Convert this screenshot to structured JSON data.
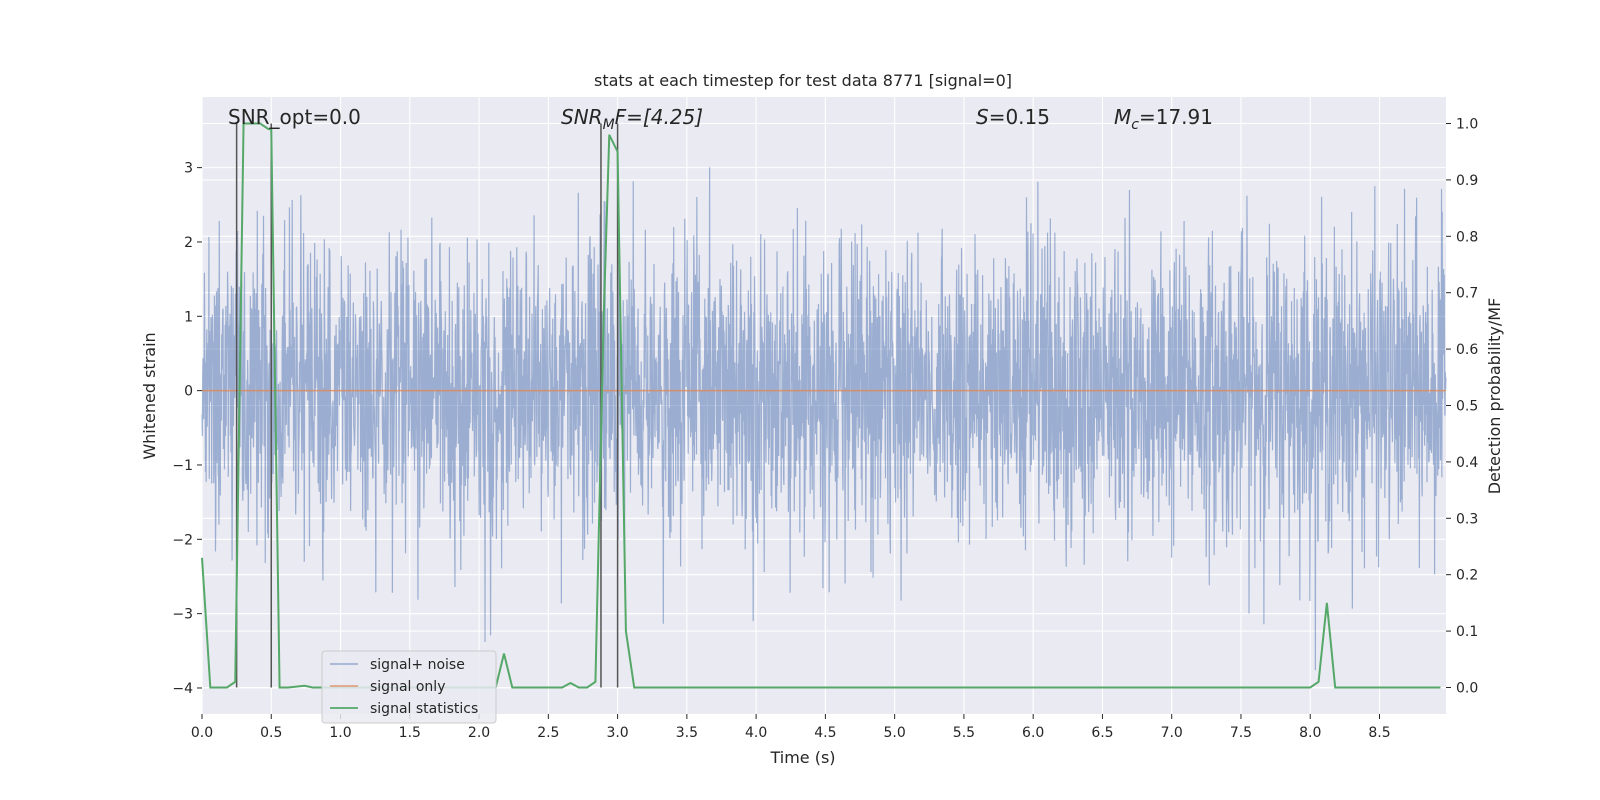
{
  "chart_data": {
    "type": "line",
    "title": "stats at each timestep for test data 8771 [signal=0]",
    "xlabel": "Time (s)",
    "ylabel_left": "Whitened strain",
    "ylabel_right": "Detection probability/MF",
    "xlim": [
      0.0,
      8.98
    ],
    "ylim_left": [
      -4.35,
      3.95
    ],
    "ylim_right": [
      -0.047,
      1.047
    ],
    "xticks": [
      "0.0",
      "0.5",
      "1.0",
      "1.5",
      "2.0",
      "2.5",
      "3.0",
      "3.5",
      "4.0",
      "4.5",
      "5.0",
      "5.5",
      "6.0",
      "6.5",
      "7.0",
      "7.5",
      "8.0",
      "8.5"
    ],
    "yticks_left": [
      "−4",
      "−3",
      "−2",
      "−1",
      "0",
      "1",
      "2",
      "3"
    ],
    "yticks_right": [
      "0.0",
      "0.1",
      "0.2",
      "0.3",
      "0.4",
      "0.5",
      "0.6",
      "0.7",
      "0.8",
      "0.9",
      "1.0"
    ],
    "grid": true,
    "legend_position": "lower-left",
    "colors": {
      "background": "#eaeaf2",
      "grid": "#ffffff",
      "noise": "#4c72b0",
      "signal": "#dd8452",
      "stats": "#55a868",
      "vline": "#555555"
    },
    "annotations": {
      "snr_opt": "SNR_opt=0.0",
      "snr_mf_prefix": "SNR",
      "snr_mf_sub": "M",
      "snr_mf_rest": "F=[4.25]",
      "s_prefix": "S",
      "s_value": "=0.15",
      "mc_prefix": "M",
      "mc_sub": "c",
      "mc_value": "=17.91"
    },
    "series": [
      {
        "name": "signal+ noise",
        "axis": "left",
        "note": "whitened strain noise, roughly within -2 to 2 with spikes up to 3.6 and down to -3.9"
      },
      {
        "name": "signal only",
        "axis": "left",
        "x": [
          0.0,
          8.98
        ],
        "y": [
          0.0,
          0.0
        ]
      },
      {
        "name": "signal statistics",
        "axis": "right",
        "x": [
          0.0,
          0.06,
          0.18,
          0.24,
          0.3,
          0.36,
          0.42,
          0.48,
          0.5,
          0.56,
          0.62,
          0.74,
          0.8,
          0.86,
          0.92,
          0.98,
          1.04,
          1.1,
          1.16,
          1.22,
          1.28,
          1.34,
          1.4,
          1.46,
          1.52,
          1.58,
          1.64,
          1.7,
          1.76,
          1.82,
          1.88,
          1.94,
          2.0,
          2.06,
          2.12,
          2.18,
          2.24,
          2.3,
          2.36,
          2.42,
          2.48,
          2.54,
          2.6,
          2.66,
          2.72,
          2.78,
          2.84,
          2.9,
          2.94,
          3.0,
          3.06,
          3.12,
          3.18,
          3.3,
          3.5,
          4.0,
          5.0,
          6.0,
          7.0,
          7.5,
          8.0,
          8.06,
          8.12,
          8.18,
          8.24,
          8.3,
          8.5,
          8.7,
          8.82,
          8.88,
          8.94
        ],
        "y": [
          0.23,
          0.0,
          0.0,
          0.01,
          1.0,
          1.0,
          1.0,
          0.99,
          0.99,
          0.0,
          0.0,
          0.003,
          0.0,
          0.0,
          0.0,
          0.0,
          0.0,
          0.0,
          0.0,
          0.0,
          0.0,
          0.0,
          0.0,
          0.0,
          0.0,
          0.0,
          0.0,
          0.0,
          0.0,
          0.0,
          0.0,
          0.0,
          0.0,
          0.0,
          0.0,
          0.06,
          0.0,
          0.0,
          0.0,
          0.0,
          0.0,
          0.0,
          0.0,
          0.008,
          0.0,
          0.0,
          0.01,
          0.66,
          0.98,
          0.95,
          0.1,
          0.0,
          0.0,
          0.0,
          0.0,
          0.0,
          0.0,
          0.0,
          0.0,
          0.0,
          0.0,
          0.01,
          0.15,
          0.0,
          0.0,
          0.0,
          0.0,
          0.0,
          0.0,
          0.0,
          0.0
        ]
      }
    ],
    "vertical_lines": [
      0.25,
      0.5,
      2.88,
      3.0
    ]
  }
}
